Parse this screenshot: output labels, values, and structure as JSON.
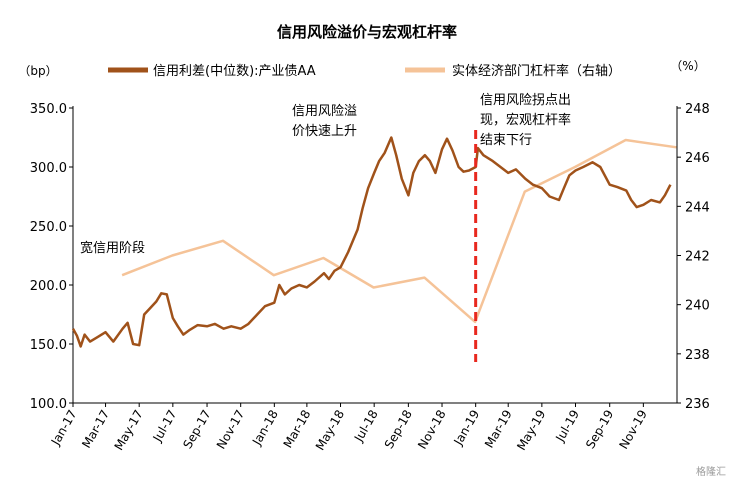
{
  "chart_data": {
    "type": "line",
    "title": "信用风险溢价与宏观杠杆率",
    "left_unit": "（bp）",
    "right_unit": "（%）",
    "left_ylim": [
      100,
      350
    ],
    "left_ticks": [
      "100.0",
      "150.0",
      "200.0",
      "250.0",
      "300.0",
      "350.0"
    ],
    "right_ylim": [
      236,
      248
    ],
    "right_ticks": [
      "236",
      "238",
      "240",
      "242",
      "244",
      "246",
      "248"
    ],
    "x_range": [
      "2017-01",
      "2019-12"
    ],
    "x_ticks": [
      "Jan-17",
      "Mar-17",
      "May-17",
      "Jul-17",
      "Sep-17",
      "Nov-17",
      "Jan-18",
      "Mar-18",
      "May-18",
      "Jul-18",
      "Sep-18",
      "Nov-18",
      "Jan-19",
      "Mar-19",
      "May-19",
      "Jul-19",
      "Sep-19",
      "Nov-19"
    ],
    "legend_position": "top",
    "series": [
      {
        "name": "信用利差(中位数):产业债AA",
        "axis": "left",
        "color": "#A0521A",
        "points": [
          [
            "2017-01-01",
            163
          ],
          [
            "2017-01-08",
            157
          ],
          [
            "2017-01-15",
            148
          ],
          [
            "2017-01-22",
            158
          ],
          [
            "2017-02-01",
            152
          ],
          [
            "2017-02-15",
            156
          ],
          [
            "2017-03-01",
            160
          ],
          [
            "2017-03-15",
            152
          ],
          [
            "2017-04-01",
            163
          ],
          [
            "2017-04-10",
            168
          ],
          [
            "2017-04-20",
            150
          ],
          [
            "2017-05-01",
            149
          ],
          [
            "2017-05-10",
            175
          ],
          [
            "2017-05-20",
            180
          ],
          [
            "2017-06-01",
            186
          ],
          [
            "2017-06-10",
            193
          ],
          [
            "2017-06-20",
            192
          ],
          [
            "2017-07-01",
            172
          ],
          [
            "2017-07-10",
            165
          ],
          [
            "2017-07-20",
            158
          ],
          [
            "2017-08-01",
            162
          ],
          [
            "2017-08-15",
            166
          ],
          [
            "2017-09-01",
            165
          ],
          [
            "2017-09-15",
            167
          ],
          [
            "2017-10-01",
            163
          ],
          [
            "2017-10-15",
            165
          ],
          [
            "2017-11-01",
            163
          ],
          [
            "2017-11-15",
            167
          ],
          [
            "2017-12-01",
            175
          ],
          [
            "2017-12-15",
            182
          ],
          [
            "2018-01-01",
            185
          ],
          [
            "2018-01-10",
            200
          ],
          [
            "2018-01-20",
            192
          ],
          [
            "2018-02-01",
            197
          ],
          [
            "2018-02-15",
            200
          ],
          [
            "2018-03-01",
            198
          ],
          [
            "2018-03-15",
            203
          ],
          [
            "2018-04-01",
            210
          ],
          [
            "2018-04-10",
            205
          ],
          [
            "2018-04-20",
            212
          ],
          [
            "2018-05-01",
            215
          ],
          [
            "2018-05-15",
            228
          ],
          [
            "2018-06-01",
            247
          ],
          [
            "2018-06-10",
            265
          ],
          [
            "2018-06-20",
            282
          ],
          [
            "2018-07-01",
            295
          ],
          [
            "2018-07-10",
            305
          ],
          [
            "2018-07-20",
            312
          ],
          [
            "2018-08-01",
            325
          ],
          [
            "2018-08-10",
            310
          ],
          [
            "2018-08-20",
            290
          ],
          [
            "2018-09-01",
            276
          ],
          [
            "2018-09-10",
            295
          ],
          [
            "2018-09-20",
            305
          ],
          [
            "2018-10-01",
            310
          ],
          [
            "2018-10-10",
            305
          ],
          [
            "2018-10-20",
            295
          ],
          [
            "2018-11-01",
            315
          ],
          [
            "2018-11-10",
            324
          ],
          [
            "2018-11-20",
            314
          ],
          [
            "2018-12-01",
            300
          ],
          [
            "2018-12-10",
            296
          ],
          [
            "2018-12-20",
            297
          ],
          [
            "2019-01-01",
            300
          ],
          [
            "2019-01-05",
            316
          ],
          [
            "2019-01-15",
            310
          ],
          [
            "2019-02-01",
            305
          ],
          [
            "2019-02-15",
            300
          ],
          [
            "2019-03-01",
            295
          ],
          [
            "2019-03-15",
            298
          ],
          [
            "2019-04-01",
            290
          ],
          [
            "2019-04-15",
            285
          ],
          [
            "2019-05-01",
            282
          ],
          [
            "2019-05-15",
            275
          ],
          [
            "2019-06-01",
            272
          ],
          [
            "2019-06-10",
            282
          ],
          [
            "2019-06-20",
            293
          ],
          [
            "2019-07-01",
            297
          ],
          [
            "2019-07-15",
            300
          ],
          [
            "2019-08-01",
            304
          ],
          [
            "2019-08-15",
            300
          ],
          [
            "2019-09-01",
            285
          ],
          [
            "2019-09-15",
            283
          ],
          [
            "2019-10-01",
            280
          ],
          [
            "2019-10-10",
            272
          ],
          [
            "2019-10-20",
            266
          ],
          [
            "2019-11-01",
            268
          ],
          [
            "2019-11-15",
            272
          ],
          [
            "2019-12-01",
            270
          ],
          [
            "2019-12-10",
            276
          ],
          [
            "2019-12-20",
            285
          ]
        ]
      },
      {
        "name": "实体经济部门杠杆率（右轴）",
        "axis": "right",
        "color": "#F5C398",
        "points": [
          [
            "2017-03-31",
            241.2
          ],
          [
            "2017-06-30",
            242.0
          ],
          [
            "2017-09-30",
            242.6
          ],
          [
            "2017-12-31",
            241.2
          ],
          [
            "2018-03-31",
            241.9
          ],
          [
            "2018-06-30",
            240.7
          ],
          [
            "2018-09-30",
            241.1
          ],
          [
            "2018-12-31",
            239.3
          ],
          [
            "2019-03-31",
            244.6
          ],
          [
            "2019-06-30",
            245.6
          ],
          [
            "2019-09-30",
            246.7
          ],
          [
            "2019-12-31",
            246.4
          ]
        ]
      }
    ],
    "vline": {
      "date": "2019-01-01",
      "color": "#E8281E",
      "style": "dashed"
    },
    "annotations": [
      {
        "lines": [
          "宽信用阶段"
        ]
      },
      {
        "lines": [
          "信用风险溢",
          "价快速上升"
        ]
      },
      {
        "lines": [
          "信用风险拐点出",
          "现，宏观杠杆率",
          "结束下行"
        ]
      }
    ]
  },
  "watermark": "格隆汇"
}
